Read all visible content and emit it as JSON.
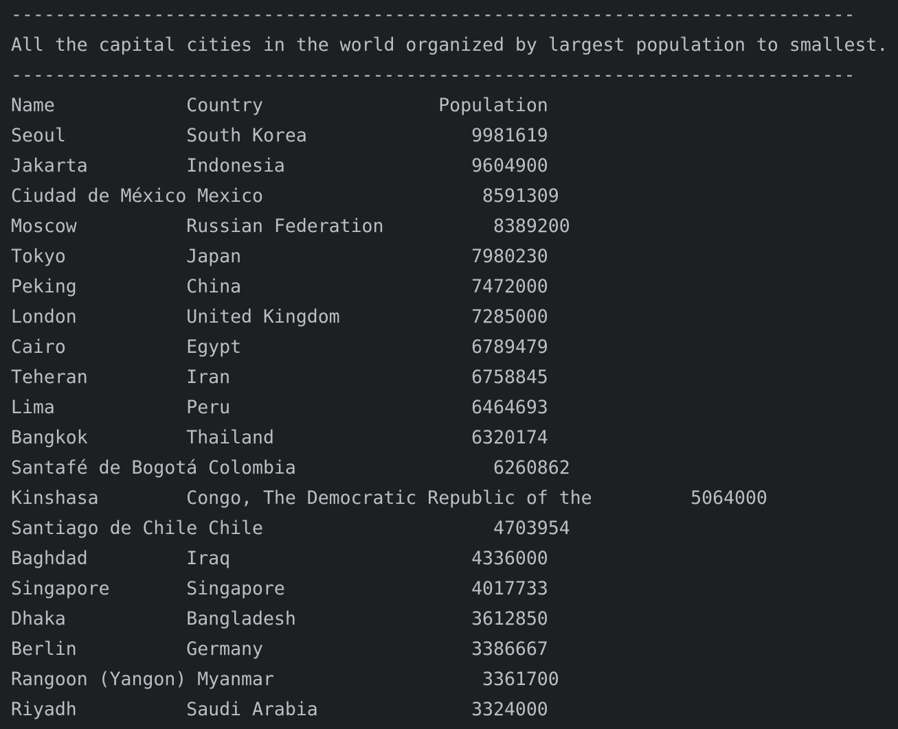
{
  "console": {
    "separator_top": "-----------------------------------------------------------------------------",
    "heading": "All the capital cities in the world organized by largest population to smallest.",
    "separator_bottom": "-----------------------------------------------------------------------------",
    "lines": [
      "Name            Country                Population",
      "Seoul           South Korea               9981619",
      "Jakarta         Indonesia                 9604900",
      "Ciudad de México Mexico                    8591309",
      "Moscow          Russian Federation          8389200",
      "Tokyo           Japan                     7980230",
      "Peking          China                     7472000",
      "London          United Kingdom            7285000",
      "Cairo           Egypt                     6789479",
      "Teheran         Iran                      6758845",
      "Lima            Peru                      6464693",
      "Bangkok         Thailand                  6320174",
      "Santafé de Bogotá Colombia                  6260862",
      "Kinshasa        Congo, The Democratic Republic of the         5064000",
      "Santiago de Chile Chile                     4703954",
      "Baghdad         Iraq                      4336000",
      "Singapore       Singapore                 4017733",
      "Dhaka           Bangladesh                3612850",
      "Berlin          Germany                   3386667",
      "Rangoon (Yangon) Myanmar                   3361700",
      "Riyadh          Saudi Arabia              3324000"
    ]
  }
}
